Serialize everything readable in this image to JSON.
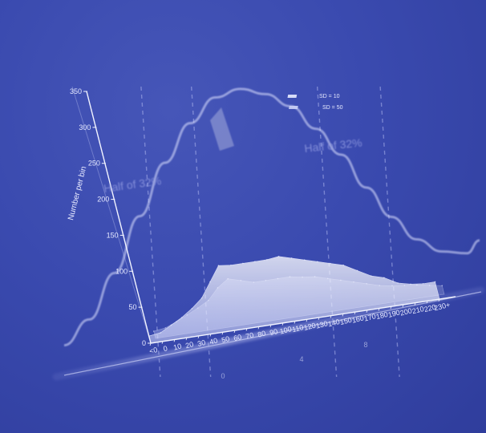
{
  "chart_data": {
    "type": "area",
    "title": "",
    "xlabel": "",
    "ylabel": "Number per bin",
    "ylim": [
      0,
      350
    ],
    "y_ticks": [
      0,
      50,
      100,
      150,
      200,
      250,
      300,
      350
    ],
    "categories": [
      "<0",
      "0",
      "10",
      "20",
      "30",
      "40",
      "50",
      "60",
      "70",
      "80",
      "90",
      "100",
      "110",
      "120",
      "130",
      "140",
      "150",
      "160",
      "170",
      "180",
      "190",
      "200",
      "210",
      "220",
      "230+"
    ],
    "series": [
      {
        "name": "SD = 10",
        "color": "#e8ebff",
        "values": [
          10,
          12,
          20,
          28,
          38,
          50,
          70,
          90,
          88,
          88,
          88,
          88,
          90,
          85,
          80,
          75,
          70,
          65,
          55,
          45,
          40,
          30,
          26,
          24,
          24
        ]
      },
      {
        "name": "SD = 50",
        "color": "#c9cff5",
        "values": [
          10,
          12,
          18,
          25,
          32,
          40,
          55,
          65,
          60,
          55,
          55,
          55,
          55,
          52,
          50,
          45,
          40,
          35,
          30,
          25,
          22,
          20,
          18,
          15,
          12
        ]
      }
    ],
    "curve": {
      "x": [
        -60,
        -40,
        -20,
        0,
        20,
        40,
        60,
        80,
        100,
        120,
        140,
        160,
        180,
        200,
        220,
        240,
        260,
        270
      ],
      "y": [
        40,
        70,
        130,
        205,
        275,
        325,
        355,
        360,
        345,
        320,
        280,
        235,
        180,
        130,
        90,
        65,
        55,
        70
      ]
    },
    "dashed_lines_x": [
      10,
      50,
      150,
      200
    ],
    "annotations": [
      {
        "text": "Half of 32%"
      },
      {
        "text": "Half of 32%"
      }
    ],
    "bottom_labels": [
      "0",
      "4",
      "8"
    ],
    "grid": false,
    "legend_position": "top-center"
  }
}
